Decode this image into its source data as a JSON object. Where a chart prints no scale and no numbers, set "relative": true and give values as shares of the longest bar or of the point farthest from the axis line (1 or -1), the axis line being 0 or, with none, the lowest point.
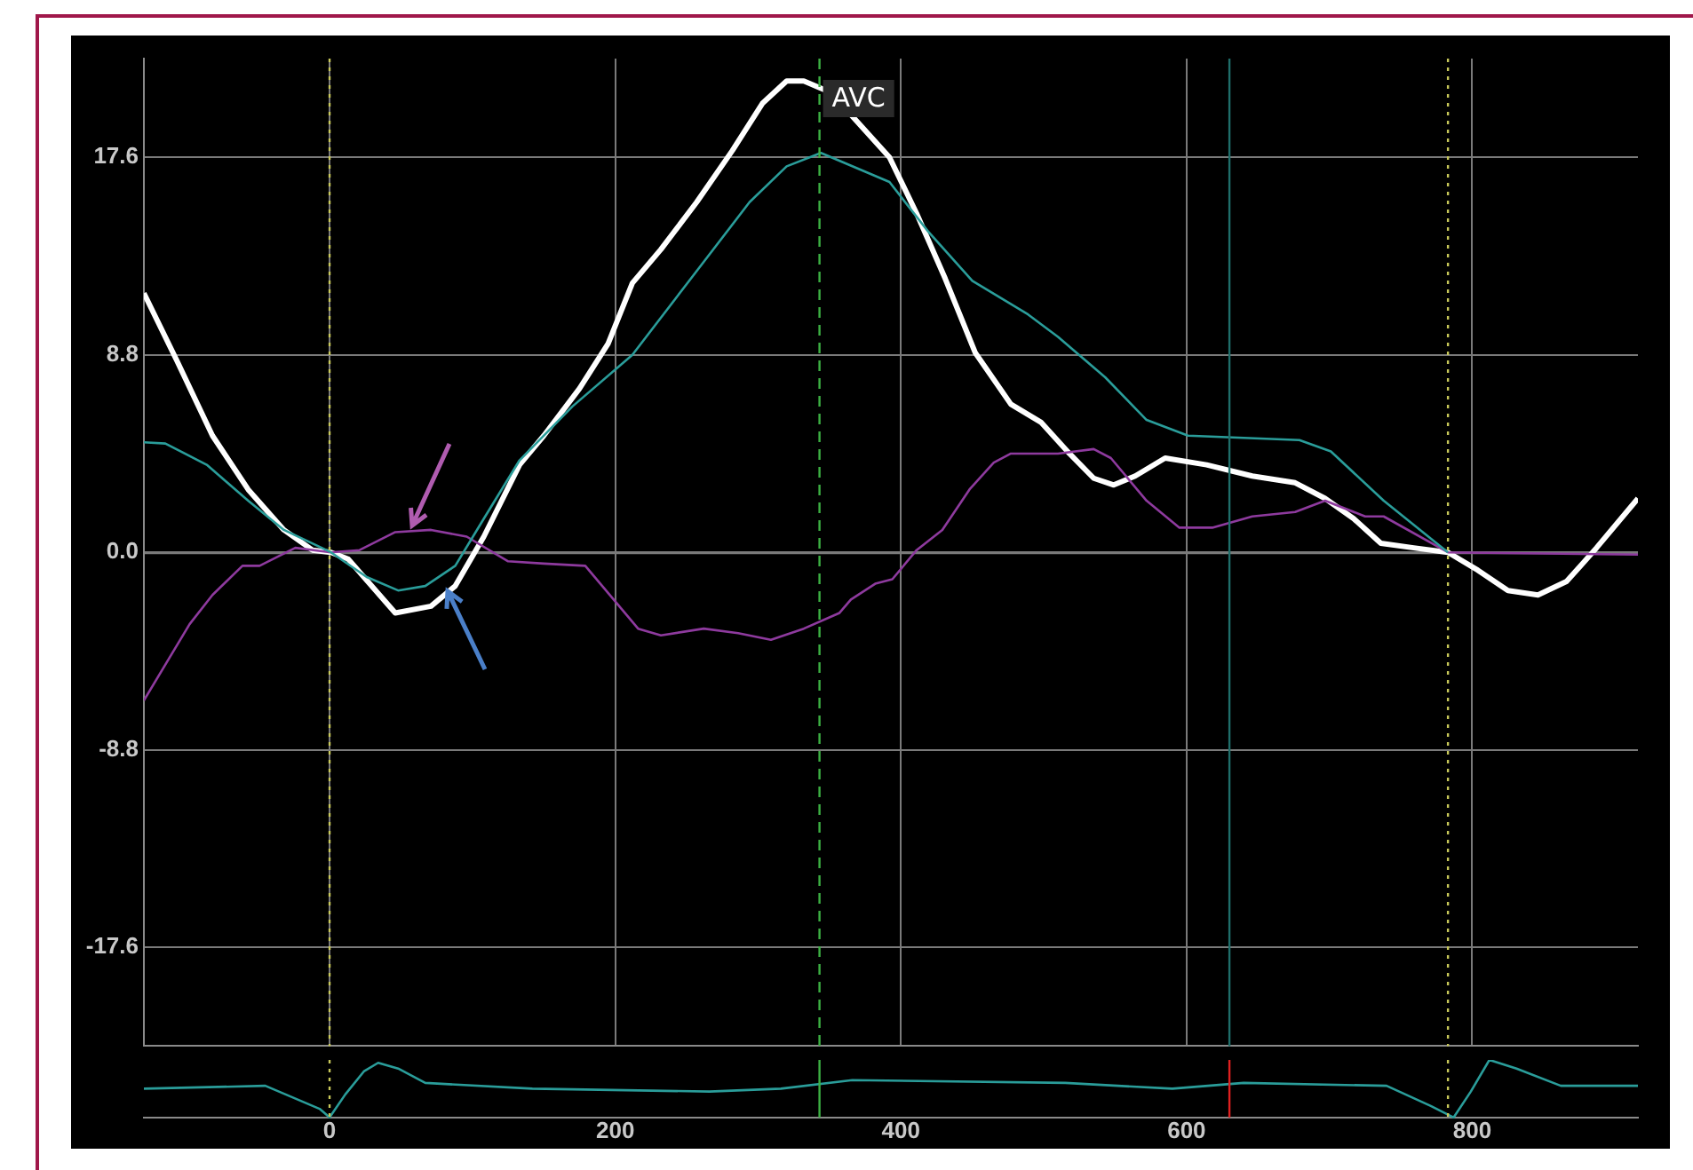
{
  "chart_data": [
    {
      "type": "line",
      "xlim": [
        -130,
        916
      ],
      "xticks": [
        0,
        200,
        400,
        600,
        800
      ],
      "ylim": [
        -22,
        22
      ],
      "yticks": [
        -17.6,
        -8.8,
        {
          "value": 0,
          "label": "0.0"
        },
        8.8,
        17.6
      ],
      "tick_labels": "y",
      "grid": true,
      "legend": false,
      "marker": "none",
      "line_style": "solid",
      "ref_lines": [
        {
          "axis": "x",
          "value": 0,
          "color": "#c8c85a",
          "line_style": "dotted"
        },
        {
          "axis": "x",
          "value": 343,
          "label": "AVC",
          "color": "#3cb043",
          "line_style": "dashed"
        },
        {
          "axis": "x",
          "value": 630,
          "color": "#1f6e6a",
          "line_style": "solid"
        },
        {
          "axis": "x",
          "value": 783,
          "color": "#c8c85a",
          "line_style": "dotted"
        }
      ],
      "series": [
        {
          "color": "#2a9d9a",
          "x": [
            -130,
            -115,
            -86,
            -57,
            -32,
            1,
            26,
            48,
            67,
            88,
            108,
            133,
            170,
            212,
            253,
            294,
            320,
            344,
            392,
            419,
            450,
            489,
            510,
            543,
            572,
            601,
            679,
            701,
            738,
            783
          ],
          "values": [
            4.9,
            4.85,
            3.9,
            2.3,
            1.0,
            0,
            -1.1,
            -1.7,
            -1.5,
            -0.6,
            1.5,
            4.1,
            6.5,
            8.8,
            12.2,
            15.6,
            17.2,
            17.8,
            16.5,
            14.3,
            12.1,
            10.6,
            9.6,
            7.8,
            5.9,
            5.2,
            5.0,
            4.5,
            2.3,
            0
          ]
        },
        {
          "color": "#8e3a9e",
          "x": [
            -130,
            -98,
            -82,
            -61,
            -49,
            -24,
            1,
            21,
            46,
            71,
            96,
            125,
            150,
            179,
            216,
            232,
            262,
            286,
            309,
            332,
            357,
            365,
            382,
            394,
            411,
            429,
            448,
            465,
            477,
            510,
            535,
            547,
            572,
            595,
            618,
            646,
            676,
            697,
            725,
            738,
            783,
            916
          ],
          "values": [
            -6.6,
            -3.2,
            -1.9,
            -0.6,
            -0.6,
            0.2,
            0,
            0.1,
            0.9,
            1.0,
            0.7,
            -0.4,
            -0.5,
            -0.6,
            -3.4,
            -3.7,
            -3.4,
            -3.6,
            -3.9,
            -3.4,
            -2.7,
            -2.1,
            -1.4,
            -1.2,
            0.1,
            1.0,
            2.8,
            4.0,
            4.4,
            4.4,
            4.6,
            4.2,
            2.3,
            1.1,
            1.1,
            1.6,
            1.8,
            2.3,
            1.6,
            1.6,
            0,
            -0.1
          ]
        },
        {
          "color": "#ffffff",
          "x": [
            -130,
            -107,
            -82,
            -57,
            -32,
            -12,
            1,
            13,
            46,
            71,
            88,
            108,
            133,
            150,
            175,
            195,
            212,
            232,
            257,
            282,
            303,
            320,
            332,
            347,
            365,
            392,
            411,
            431,
            452,
            477,
            498,
            518,
            535,
            549,
            564,
            585,
            614,
            646,
            676,
            697,
            717,
            736,
            759,
            783,
            804,
            825,
            846,
            866,
            887,
            916
          ],
          "values": [
            11.55,
            8.55,
            5.2,
            2.8,
            1.0,
            0.1,
            0,
            -0.3,
            -2.7,
            -2.4,
            -1.5,
            0.7,
            3.9,
            5.2,
            7.3,
            9.3,
            12.0,
            13.5,
            15.6,
            17.9,
            20.0,
            21.0,
            21.0,
            20.6,
            19.5,
            17.6,
            15.1,
            12.2,
            8.9,
            6.6,
            5.8,
            4.4,
            3.3,
            3.0,
            3.4,
            4.2,
            3.9,
            3.4,
            3.1,
            2.4,
            1.5,
            0.4,
            0.2,
            0,
            -0.8,
            -1.7,
            -1.9,
            -1.3,
            0.2,
            2.4
          ]
        }
      ]
    },
    {
      "type": "line",
      "relative": true,
      "xlim": [
        -130,
        916
      ],
      "xticks": [
        0,
        200,
        400,
        600,
        800
      ],
      "tick_labels": "x",
      "legend": false,
      "marker": "none",
      "ref_lines": [
        {
          "axis": "x",
          "value": 0,
          "color": "#c8c85a",
          "line_style": "dotted"
        },
        {
          "axis": "x",
          "value": 343,
          "color": "#3cb043",
          "line_style": "solid"
        },
        {
          "axis": "x",
          "value": 630,
          "color": "#e02020",
          "line_style": "solid"
        },
        {
          "axis": "x",
          "value": 783,
          "color": "#c8c85a",
          "line_style": "dotted"
        }
      ],
      "series": [
        {
          "color": "#2a9d9a",
          "x": [
            -130,
            -45,
            -7,
            0,
            11,
            24,
            34,
            48,
            67,
            142,
            266,
            316,
            366,
            515,
            590,
            640,
            740,
            771,
            787,
            799,
            812,
            831,
            862,
            916
          ],
          "values": [
            0.5,
            0.55,
            0.15,
            0,
            0.4,
            0.8,
            0.95,
            0.85,
            0.6,
            0.5,
            0.45,
            0.5,
            0.65,
            0.6,
            0.5,
            0.6,
            0.55,
            0.2,
            0,
            0.45,
            1,
            0.85,
            0.55,
            0.55
          ]
        }
      ]
    }
  ]
}
